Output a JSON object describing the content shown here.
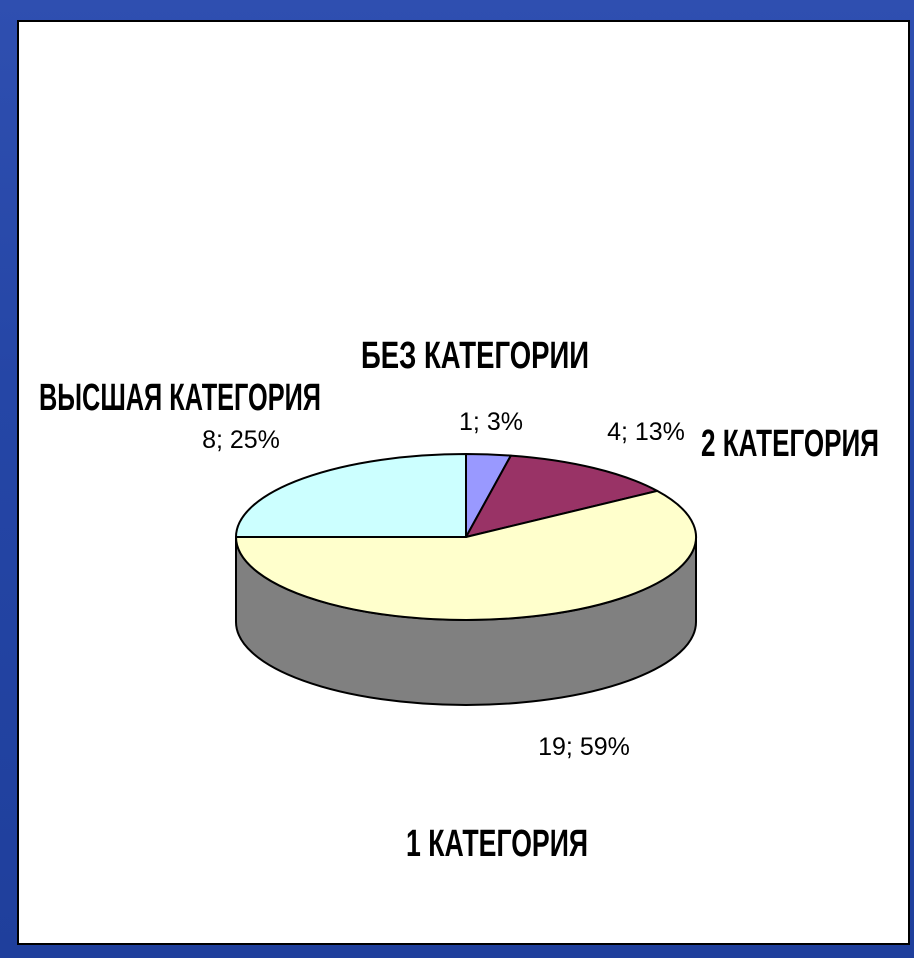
{
  "chart_data": {
    "type": "pie",
    "three_d": true,
    "grid": false,
    "legend": "none",
    "slices": [
      {
        "name": "БЕЗ КАТЕГОРИИ",
        "value": 1,
        "percent": 3,
        "label": "1; 3%",
        "color": "#9999ff"
      },
      {
        "name": "2 КАТЕГОРИЯ",
        "value": 4,
        "percent": 13,
        "label": "4; 13%",
        "color": "#993366"
      },
      {
        "name": "1 КАТЕГОРИЯ",
        "value": 19,
        "percent": 59,
        "label": "19; 59%",
        "color": "#ffffcc"
      },
      {
        "name": "ВЫСШАЯ КАТЕГОРИЯ",
        "value": 8,
        "percent": 25,
        "label": "8; 25%",
        "color": "#ccffff"
      }
    ],
    "side_color": "#808080"
  }
}
